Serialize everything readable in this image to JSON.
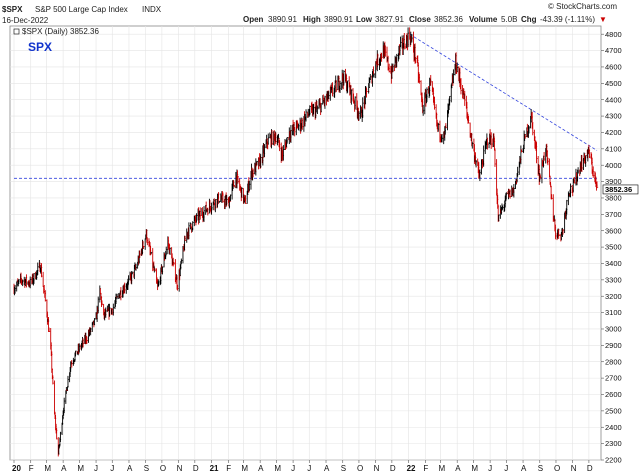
{
  "header": {
    "symbol": "$SPX",
    "name": "S&P 500 Large Cap Index",
    "exchange": "INDX",
    "date": "16-Dec-2022",
    "open_label": "Open",
    "open": "3890.91",
    "high_label": "High",
    "high": "3890.91",
    "low_label": "Low",
    "low": "3827.91",
    "close_label": "Close",
    "close": "3852.36",
    "volume_label": "Volume",
    "volume": "5.0B",
    "chg_label": "Chg",
    "chg": "-43.39 (-1.11%)",
    "chg_marker": "▼",
    "watermark": "© StockCharts.com",
    "legend_text": "$SPX (Daily) 3852.36",
    "big_label": "SPX",
    "last_price_tag": "3852.36"
  },
  "colors": {
    "up": "#000000",
    "down": "#cc0000",
    "trendline": "#3344dd",
    "big_label": "#1133cc",
    "grid": "#e4e4e4"
  },
  "chart_data": {
    "type": "line",
    "series": [
      {
        "name": "$SPX (Daily)",
        "x": [
          "2020-01-01",
          "2020-01-15",
          "2020-02-01",
          "2020-02-19",
          "2020-03-02",
          "2020-03-09",
          "2020-03-16",
          "2020-03-23",
          "2020-04-01",
          "2020-04-15",
          "2020-05-01",
          "2020-05-15",
          "2020-06-01",
          "2020-06-08",
          "2020-06-15",
          "2020-07-01",
          "2020-07-15",
          "2020-08-01",
          "2020-08-15",
          "2020-09-02",
          "2020-09-23",
          "2020-10-12",
          "2020-10-30",
          "2020-11-15",
          "2020-12-01",
          "2020-12-15",
          "2021-01-01",
          "2021-01-15",
          "2021-02-01",
          "2021-02-15",
          "2021-03-04",
          "2021-03-15",
          "2021-04-01",
          "2021-04-15",
          "2021-05-01",
          "2021-05-12",
          "2021-05-25",
          "2021-06-15",
          "2021-07-01",
          "2021-07-15",
          "2021-08-01",
          "2021-08-15",
          "2021-09-02",
          "2021-09-15",
          "2021-10-04",
          "2021-10-15",
          "2021-11-01",
          "2021-11-15",
          "2021-11-30",
          "2021-12-15",
          "2022-01-03",
          "2022-01-15",
          "2022-01-27",
          "2022-02-10",
          "2022-02-24",
          "2022-03-08",
          "2022-03-29",
          "2022-04-15",
          "2022-04-29",
          "2022-05-12",
          "2022-05-27",
          "2022-06-08",
          "2022-06-16",
          "2022-07-01",
          "2022-07-15",
          "2022-08-01",
          "2022-08-16",
          "2022-09-01",
          "2022-09-12",
          "2022-09-30",
          "2022-10-12",
          "2022-10-25",
          "2022-11-01",
          "2022-11-15",
          "2022-12-01",
          "2022-12-16"
        ],
        "values": [
          3250,
          3300,
          3280,
          3386,
          3100,
          2880,
          2480,
          2237,
          2500,
          2790,
          2880,
          2950,
          3060,
          3230,
          3080,
          3120,
          3220,
          3290,
          3380,
          3580,
          3250,
          3530,
          3270,
          3580,
          3660,
          3710,
          3760,
          3800,
          3770,
          3930,
          3770,
          3950,
          4020,
          4150,
          4180,
          4060,
          4200,
          4250,
          4320,
          4340,
          4400,
          4460,
          4540,
          4450,
          4300,
          4440,
          4620,
          4700,
          4560,
          4700,
          4796,
          4650,
          4350,
          4500,
          4220,
          4170,
          4630,
          4390,
          4130,
          3930,
          4160,
          4150,
          3670,
          3800,
          3850,
          4120,
          4300,
          3920,
          4110,
          3590,
          3580,
          3850,
          3860,
          4000,
          4080,
          3852
        ]
      }
    ],
    "trendlines": [
      {
        "x": [
          "2022-01-03",
          "2022-12-16"
        ],
        "y": [
          4800,
          4090
        ]
      },
      {
        "x": [
          "2020-01-01",
          "2022-12-16"
        ],
        "y": [
          3920,
          3920
        ]
      }
    ],
    "x_range": [
      "2020-01-01",
      "2022-12-16"
    ],
    "x_tick_labels": [
      {
        "date": "2020-01-01",
        "label": "20"
      },
      {
        "date": "2020-02-01",
        "label": "F"
      },
      {
        "date": "2020-03-01",
        "label": "M"
      },
      {
        "date": "2020-04-01",
        "label": "A"
      },
      {
        "date": "2020-05-01",
        "label": "M"
      },
      {
        "date": "2020-06-01",
        "label": "J"
      },
      {
        "date": "2020-07-01",
        "label": "J"
      },
      {
        "date": "2020-08-01",
        "label": "A"
      },
      {
        "date": "2020-09-01",
        "label": "S"
      },
      {
        "date": "2020-10-01",
        "label": "O"
      },
      {
        "date": "2020-11-01",
        "label": "N"
      },
      {
        "date": "2020-12-01",
        "label": "D"
      },
      {
        "date": "2021-01-01",
        "label": "21"
      },
      {
        "date": "2021-02-01",
        "label": "F"
      },
      {
        "date": "2021-03-01",
        "label": "M"
      },
      {
        "date": "2021-04-01",
        "label": "A"
      },
      {
        "date": "2021-05-01",
        "label": "M"
      },
      {
        "date": "2021-06-01",
        "label": "J"
      },
      {
        "date": "2021-07-01",
        "label": "J"
      },
      {
        "date": "2021-08-01",
        "label": "A"
      },
      {
        "date": "2021-09-01",
        "label": "S"
      },
      {
        "date": "2021-10-01",
        "label": "O"
      },
      {
        "date": "2021-11-01",
        "label": "N"
      },
      {
        "date": "2021-12-01",
        "label": "D"
      },
      {
        "date": "2022-01-01",
        "label": "22"
      },
      {
        "date": "2022-02-01",
        "label": "F"
      },
      {
        "date": "2022-03-01",
        "label": "M"
      },
      {
        "date": "2022-04-01",
        "label": "A"
      },
      {
        "date": "2022-05-01",
        "label": "M"
      },
      {
        "date": "2022-06-01",
        "label": "J"
      },
      {
        "date": "2022-07-01",
        "label": "J"
      },
      {
        "date": "2022-08-01",
        "label": "A"
      },
      {
        "date": "2022-09-01",
        "label": "S"
      },
      {
        "date": "2022-10-01",
        "label": "O"
      },
      {
        "date": "2022-11-01",
        "label": "N"
      },
      {
        "date": "2022-12-01",
        "label": "D"
      }
    ],
    "ylim": [
      2200,
      4850
    ],
    "y_ticks": [
      2200,
      2300,
      2400,
      2500,
      2600,
      2700,
      2800,
      2900,
      3000,
      3100,
      3200,
      3300,
      3400,
      3500,
      3600,
      3700,
      3800,
      3900,
      4000,
      4100,
      4200,
      4300,
      4400,
      4500,
      4600,
      4700,
      4800
    ],
    "y_axis_side": "right",
    "grid": true
  }
}
